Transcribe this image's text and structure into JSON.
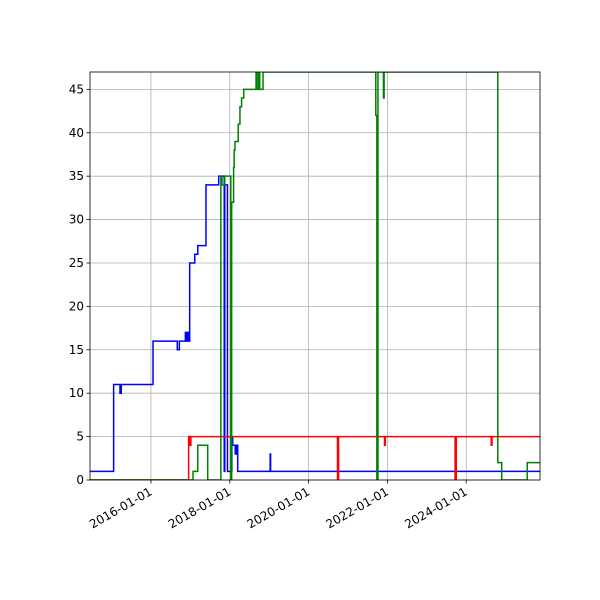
{
  "chart_data": {
    "type": "line",
    "title": "",
    "xlabel": "",
    "ylabel": "",
    "x_axis_type": "date",
    "xlim": [
      "2014-06-15",
      "2025-11-15"
    ],
    "ylim": [
      0,
      47
    ],
    "grid": true,
    "x_ticks": [
      "2016-01-01",
      "2018-01-01",
      "2020-01-01",
      "2022-01-01",
      "2024-01-01"
    ],
    "y_ticks": [
      0,
      5,
      10,
      15,
      20,
      25,
      30,
      35,
      40,
      45
    ],
    "series": [
      {
        "color": "#0000ff",
        "points": [
          [
            "2014-06-15",
            1
          ],
          [
            "2015-01-20",
            1
          ],
          [
            "2015-01-20",
            11
          ],
          [
            "2015-03-20",
            11
          ],
          [
            "2015-03-20",
            10
          ],
          [
            "2015-04-01",
            10
          ],
          [
            "2015-04-01",
            11
          ],
          [
            "2016-01-20",
            11
          ],
          [
            "2016-01-20",
            16
          ],
          [
            "2016-09-01",
            16
          ],
          [
            "2016-09-01",
            15
          ],
          [
            "2016-09-20",
            15
          ],
          [
            "2016-09-20",
            16
          ],
          [
            "2016-11-15",
            16
          ],
          [
            "2016-11-15",
            17
          ],
          [
            "2016-11-28",
            17
          ],
          [
            "2016-11-28",
            16
          ],
          [
            "2016-12-05",
            16
          ],
          [
            "2016-12-05",
            17
          ],
          [
            "2016-12-15",
            17
          ],
          [
            "2016-12-15",
            16
          ],
          [
            "2016-12-25",
            16
          ],
          [
            "2016-12-25",
            25
          ],
          [
            "2017-02-10",
            25
          ],
          [
            "2017-02-10",
            26
          ],
          [
            "2017-03-10",
            26
          ],
          [
            "2017-03-10",
            27
          ],
          [
            "2017-05-25",
            27
          ],
          [
            "2017-05-25",
            34
          ],
          [
            "2017-09-20",
            34
          ],
          [
            "2017-09-20",
            35
          ],
          [
            "2017-11-10",
            35
          ],
          [
            "2017-11-10",
            1
          ],
          [
            "2017-11-15",
            1
          ],
          [
            "2017-11-15",
            34
          ],
          [
            "2017-12-10",
            34
          ],
          [
            "2017-12-10",
            1
          ],
          [
            "2018-01-20",
            1
          ],
          [
            "2018-01-20",
            5
          ],
          [
            "2018-01-28",
            5
          ],
          [
            "2018-01-28",
            4
          ],
          [
            "2018-02-20",
            4
          ],
          [
            "2018-02-20",
            3
          ],
          [
            "2018-03-05",
            3
          ],
          [
            "2018-03-05",
            4
          ],
          [
            "2018-03-15",
            4
          ],
          [
            "2018-03-15",
            1
          ],
          [
            "2019-01-10",
            1
          ],
          [
            "2019-01-10",
            3
          ],
          [
            "2019-01-14",
            3
          ],
          [
            "2019-01-14",
            1
          ],
          [
            "2025-11-15",
            1
          ]
        ]
      },
      {
        "color": "#ff0000",
        "points": [
          [
            "2014-06-15",
            0
          ],
          [
            "2016-12-15",
            0
          ],
          [
            "2016-12-15",
            5
          ],
          [
            "2016-12-25",
            5
          ],
          [
            "2016-12-25",
            4
          ],
          [
            "2017-01-05",
            4
          ],
          [
            "2017-01-05",
            5
          ],
          [
            "2020-09-25",
            5
          ],
          [
            "2020-09-25",
            0
          ],
          [
            "2020-10-05",
            0
          ],
          [
            "2020-10-05",
            5
          ],
          [
            "2021-12-05",
            5
          ],
          [
            "2021-12-05",
            4
          ],
          [
            "2021-12-12",
            4
          ],
          [
            "2021-12-12",
            5
          ],
          [
            "2023-09-20",
            5
          ],
          [
            "2023-09-20",
            0
          ],
          [
            "2023-10-01",
            0
          ],
          [
            "2023-10-01",
            5
          ],
          [
            "2024-08-20",
            5
          ],
          [
            "2024-08-20",
            4
          ],
          [
            "2024-08-27",
            4
          ],
          [
            "2024-08-27",
            5
          ],
          [
            "2025-11-15",
            5
          ]
        ]
      },
      {
        "color": "#008000",
        "points": [
          [
            "2014-06-15",
            0
          ],
          [
            "2017-01-25",
            0
          ],
          [
            "2017-01-25",
            1
          ],
          [
            "2017-03-10",
            1
          ],
          [
            "2017-03-10",
            4
          ],
          [
            "2017-06-10",
            4
          ],
          [
            "2017-06-10",
            0
          ],
          [
            "2017-10-10",
            0
          ],
          [
            "2017-10-10",
            35
          ],
          [
            "2017-10-20",
            35
          ],
          [
            "2017-10-20",
            34
          ],
          [
            "2017-11-15",
            34
          ],
          [
            "2017-11-15",
            35
          ],
          [
            "2018-01-10",
            35
          ],
          [
            "2018-01-10",
            0
          ],
          [
            "2018-01-18",
            0
          ],
          [
            "2018-01-18",
            32
          ],
          [
            "2018-02-05",
            32
          ],
          [
            "2018-02-05",
            36
          ],
          [
            "2018-02-10",
            36
          ],
          [
            "2018-02-10",
            38
          ],
          [
            "2018-02-18",
            38
          ],
          [
            "2018-02-18",
            39
          ],
          [
            "2018-03-20",
            39
          ],
          [
            "2018-03-20",
            41
          ],
          [
            "2018-04-05",
            41
          ],
          [
            "2018-04-05",
            43
          ],
          [
            "2018-04-20",
            43
          ],
          [
            "2018-04-20",
            44
          ],
          [
            "2018-05-10",
            44
          ],
          [
            "2018-05-10",
            45
          ],
          [
            "2018-09-01",
            45
          ],
          [
            "2018-09-01",
            47
          ],
          [
            "2018-09-10",
            47
          ],
          [
            "2018-09-10",
            45
          ],
          [
            "2018-09-25",
            45
          ],
          [
            "2018-09-25",
            47
          ],
          [
            "2018-10-05",
            47
          ],
          [
            "2018-10-05",
            45
          ],
          [
            "2018-11-05",
            45
          ],
          [
            "2018-11-05",
            47
          ],
          [
            "2021-09-15",
            47
          ],
          [
            "2021-09-15",
            42
          ],
          [
            "2021-09-25",
            42
          ],
          [
            "2021-09-25",
            0
          ],
          [
            "2021-10-05",
            0
          ],
          [
            "2021-10-05",
            47
          ],
          [
            "2021-11-25",
            47
          ],
          [
            "2021-11-25",
            44
          ],
          [
            "2021-12-01",
            44
          ],
          [
            "2021-12-01",
            47
          ],
          [
            "2024-10-20",
            47
          ],
          [
            "2024-10-20",
            2
          ],
          [
            "2024-11-25",
            2
          ],
          [
            "2024-11-25",
            0
          ],
          [
            "2025-07-20",
            0
          ],
          [
            "2025-07-20",
            2
          ],
          [
            "2025-11-15",
            2
          ]
        ]
      }
    ]
  }
}
